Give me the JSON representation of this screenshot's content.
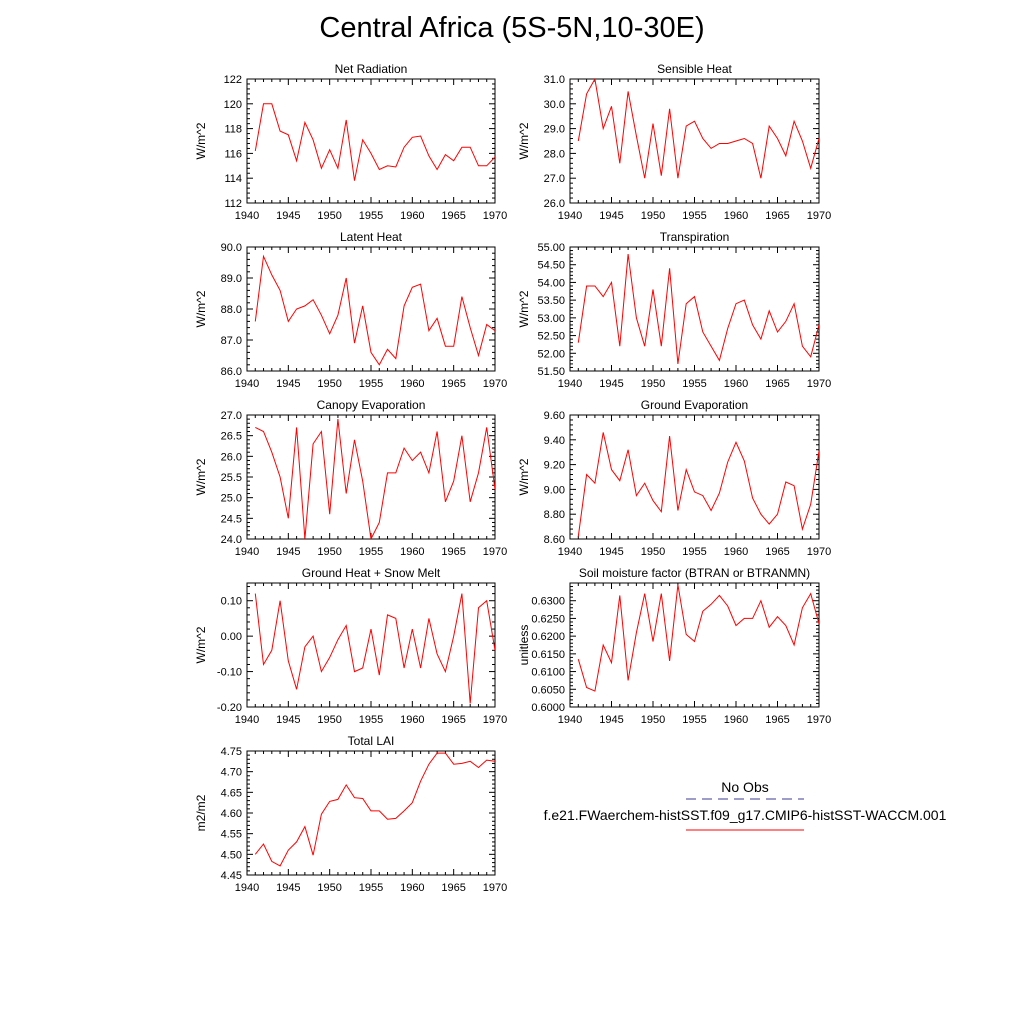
{
  "page": {
    "title": "Central Africa (5S-5N,10-30E)"
  },
  "legend": {
    "obs_label": "No Obs",
    "obs_color": "#3b3b8f",
    "model_label": "f.e21.FWaerchem-histSST.f09_g17.CMIP6-histSST-WACCM.001",
    "model_color": "#ff0000"
  },
  "chart_data": [
    {
      "type": "line",
      "title": "Net Radiation",
      "ylabel": "W/m^2",
      "xlim": [
        1940,
        1970
      ],
      "ylim": [
        112,
        122
      ],
      "yticks": [
        112,
        114,
        116,
        118,
        120,
        122
      ],
      "ytick_labels": [
        "112",
        "114",
        "116",
        "118",
        "120",
        "122"
      ],
      "xticks": [
        1940,
        1945,
        1950,
        1955,
        1960,
        1965,
        1970
      ],
      "x": [
        1941,
        1942,
        1943,
        1944,
        1945,
        1946,
        1947,
        1948,
        1949,
        1950,
        1951,
        1952,
        1953,
        1954,
        1955,
        1956,
        1957,
        1958,
        1959,
        1960,
        1961,
        1962,
        1963,
        1964,
        1965,
        1966,
        1967,
        1968,
        1969,
        1970
      ],
      "series": [
        {
          "values": [
            116.2,
            120.0,
            120.0,
            117.8,
            117.5,
            115.4,
            118.5,
            117.1,
            114.8,
            116.3,
            114.8,
            118.7,
            113.8,
            117.1,
            116.0,
            114.7,
            115.0,
            114.9,
            116.5,
            117.3,
            117.4,
            115.8,
            114.7,
            115.9,
            115.4,
            116.5,
            116.5,
            115.0,
            115.0,
            115.7
          ]
        }
      ]
    },
    {
      "type": "line",
      "title": "Sensible Heat",
      "ylabel": "W/m^2",
      "xlim": [
        1940,
        1970
      ],
      "ylim": [
        26.0,
        31.0
      ],
      "yticks": [
        26,
        27,
        28,
        29,
        30,
        31
      ],
      "ytick_labels": [
        "26.0",
        "27.0",
        "28.0",
        "29.0",
        "30.0",
        "31.0"
      ],
      "xticks": [
        1940,
        1945,
        1950,
        1955,
        1960,
        1965,
        1970
      ],
      "x": [
        1941,
        1942,
        1943,
        1944,
        1945,
        1946,
        1947,
        1948,
        1949,
        1950,
        1951,
        1952,
        1953,
        1954,
        1955,
        1956,
        1957,
        1958,
        1959,
        1960,
        1961,
        1962,
        1963,
        1964,
        1965,
        1966,
        1967,
        1968,
        1969,
        1970
      ],
      "series": [
        {
          "values": [
            28.5,
            30.4,
            31.0,
            29.0,
            29.9,
            27.6,
            30.5,
            28.7,
            27.0,
            29.2,
            27.1,
            29.8,
            27.0,
            29.1,
            29.3,
            28.6,
            28.2,
            28.4,
            28.4,
            28.5,
            28.6,
            28.4,
            27.0,
            29.1,
            28.6,
            27.9,
            29.3,
            28.5,
            27.4,
            28.6
          ]
        }
      ]
    },
    {
      "type": "line",
      "title": "Latent Heat",
      "ylabel": "W/m^2",
      "xlim": [
        1940,
        1970
      ],
      "ylim": [
        86.0,
        90.0
      ],
      "yticks": [
        86,
        87,
        88,
        89,
        90
      ],
      "ytick_labels": [
        "86.0",
        "87.0",
        "88.0",
        "89.0",
        "90.0"
      ],
      "xticks": [
        1940,
        1945,
        1950,
        1955,
        1960,
        1965,
        1970
      ],
      "x": [
        1941,
        1942,
        1943,
        1944,
        1945,
        1946,
        1947,
        1948,
        1949,
        1950,
        1951,
        1952,
        1953,
        1954,
        1955,
        1956,
        1957,
        1958,
        1959,
        1960,
        1961,
        1962,
        1963,
        1964,
        1965,
        1966,
        1967,
        1968,
        1969,
        1970
      ],
      "series": [
        {
          "values": [
            87.6,
            89.7,
            89.1,
            88.6,
            87.6,
            88.0,
            88.1,
            88.3,
            87.8,
            87.2,
            87.8,
            89.0,
            86.9,
            88.1,
            86.6,
            86.2,
            86.7,
            86.4,
            88.1,
            88.7,
            88.8,
            87.3,
            87.7,
            86.8,
            86.8,
            88.4,
            87.4,
            86.5,
            87.5,
            87.3
          ]
        }
      ]
    },
    {
      "type": "line",
      "title": "Transpiration",
      "ylabel": "W/m^2",
      "xlim": [
        1940,
        1970
      ],
      "ylim": [
        51.5,
        55.0
      ],
      "yticks": [
        51.5,
        52.0,
        52.5,
        53.0,
        53.5,
        54.0,
        54.5,
        55.0
      ],
      "ytick_labels": [
        "51.50",
        "52.00",
        "52.50",
        "53.00",
        "53.50",
        "54.00",
        "54.50",
        "55.00"
      ],
      "xticks": [
        1940,
        1945,
        1950,
        1955,
        1960,
        1965,
        1970
      ],
      "x": [
        1941,
        1942,
        1943,
        1944,
        1945,
        1946,
        1947,
        1948,
        1949,
        1950,
        1951,
        1952,
        1953,
        1954,
        1955,
        1956,
        1957,
        1958,
        1959,
        1960,
        1961,
        1962,
        1963,
        1964,
        1965,
        1966,
        1967,
        1968,
        1969,
        1970
      ],
      "series": [
        {
          "values": [
            52.3,
            53.9,
            53.9,
            53.6,
            54.0,
            52.2,
            54.8,
            53.0,
            52.2,
            53.8,
            52.2,
            54.4,
            51.7,
            53.4,
            53.6,
            52.6,
            52.2,
            51.8,
            52.7,
            53.4,
            53.5,
            52.8,
            52.4,
            53.2,
            52.6,
            52.9,
            53.4,
            52.2,
            51.9,
            52.8
          ]
        }
      ]
    },
    {
      "type": "line",
      "title": "Canopy Evaporation",
      "ylabel": "W/m^2",
      "xlim": [
        1940,
        1970
      ],
      "ylim": [
        24.0,
        27.0
      ],
      "yticks": [
        24.0,
        24.5,
        25.0,
        25.5,
        26.0,
        26.5,
        27.0
      ],
      "ytick_labels": [
        "24.0",
        "24.5",
        "25.0",
        "25.5",
        "26.0",
        "26.5",
        "27.0"
      ],
      "xticks": [
        1940,
        1945,
        1950,
        1955,
        1960,
        1965,
        1970
      ],
      "x": [
        1941,
        1942,
        1943,
        1944,
        1945,
        1946,
        1947,
        1948,
        1949,
        1950,
        1951,
        1952,
        1953,
        1954,
        1955,
        1956,
        1957,
        1958,
        1959,
        1960,
        1961,
        1962,
        1963,
        1964,
        1965,
        1966,
        1967,
        1968,
        1969,
        1970
      ],
      "series": [
        {
          "values": [
            26.7,
            26.6,
            26.1,
            25.5,
            24.5,
            26.7,
            24.0,
            26.3,
            26.6,
            24.6,
            26.9,
            25.1,
            26.4,
            25.4,
            24.0,
            24.4,
            25.6,
            25.6,
            26.2,
            25.9,
            26.1,
            25.6,
            26.6,
            24.9,
            25.4,
            26.5,
            24.9,
            25.6,
            26.7,
            25.2
          ]
        }
      ]
    },
    {
      "type": "line",
      "title": "Ground Evaporation",
      "ylabel": "W/m^2",
      "xlim": [
        1940,
        1970
      ],
      "ylim": [
        8.6,
        9.6
      ],
      "yticks": [
        8.6,
        8.8,
        9.0,
        9.2,
        9.4,
        9.6
      ],
      "ytick_labels": [
        "8.60",
        "8.80",
        "9.00",
        "9.20",
        "9.40",
        "9.60"
      ],
      "xticks": [
        1940,
        1945,
        1950,
        1955,
        1960,
        1965,
        1970
      ],
      "x": [
        1941,
        1942,
        1943,
        1944,
        1945,
        1946,
        1947,
        1948,
        1949,
        1950,
        1951,
        1952,
        1953,
        1954,
        1955,
        1956,
        1957,
        1958,
        1959,
        1960,
        1961,
        1962,
        1963,
        1964,
        1965,
        1966,
        1967,
        1968,
        1969,
        1970
      ],
      "series": [
        {
          "values": [
            8.62,
            9.12,
            9.05,
            9.46,
            9.16,
            9.07,
            9.32,
            8.95,
            9.05,
            8.91,
            8.82,
            9.43,
            8.83,
            9.16,
            8.98,
            8.95,
            8.83,
            8.97,
            9.22,
            9.38,
            9.23,
            8.93,
            8.8,
            8.72,
            8.8,
            9.06,
            9.03,
            8.68,
            8.88,
            9.31
          ]
        }
      ]
    },
    {
      "type": "line",
      "title": "Ground Heat + Snow Melt",
      "ylabel": "W/m^2",
      "xlim": [
        1940,
        1970
      ],
      "ylim": [
        -0.2,
        0.15
      ],
      "yticks": [
        -0.2,
        -0.1,
        0.0,
        0.1
      ],
      "ytick_labels": [
        "-0.20",
        "-0.10",
        "0.00",
        "0.10"
      ],
      "xticks": [
        1940,
        1945,
        1950,
        1955,
        1960,
        1965,
        1970
      ],
      "x": [
        1941,
        1942,
        1943,
        1944,
        1945,
        1946,
        1947,
        1948,
        1949,
        1950,
        1951,
        1952,
        1953,
        1954,
        1955,
        1956,
        1957,
        1958,
        1959,
        1960,
        1961,
        1962,
        1963,
        1964,
        1965,
        1966,
        1967,
        1968,
        1969,
        1970
      ],
      "series": [
        {
          "values": [
            0.12,
            -0.08,
            -0.04,
            0.1,
            -0.07,
            -0.15,
            -0.03,
            0.0,
            -0.1,
            -0.06,
            -0.01,
            0.03,
            -0.1,
            -0.09,
            0.02,
            -0.11,
            0.06,
            0.05,
            -0.09,
            0.02,
            -0.09,
            0.05,
            -0.05,
            -0.1,
            0.0,
            0.12,
            -0.19,
            0.08,
            0.1,
            -0.04
          ]
        }
      ]
    },
    {
      "type": "line",
      "title": "Soil moisture factor (BTRAN or BTRANMN)",
      "ylabel": "unitless",
      "xlim": [
        1940,
        1970
      ],
      "ylim": [
        0.6,
        0.635
      ],
      "yticks": [
        0.6,
        0.605,
        0.61,
        0.615,
        0.62,
        0.625,
        0.63
      ],
      "ytick_labels": [
        "0.6000",
        "0.6050",
        "0.6100",
        "0.6150",
        "0.6200",
        "0.6250",
        "0.6300"
      ],
      "xticks": [
        1940,
        1945,
        1950,
        1955,
        1960,
        1965,
        1970
      ],
      "x": [
        1941,
        1942,
        1943,
        1944,
        1945,
        1946,
        1947,
        1948,
        1949,
        1950,
        1951,
        1952,
        1953,
        1954,
        1955,
        1956,
        1957,
        1958,
        1959,
        1960,
        1961,
        1962,
        1963,
        1964,
        1965,
        1966,
        1967,
        1968,
        1969,
        1970
      ],
      "series": [
        {
          "values": [
            0.6135,
            0.6055,
            0.6045,
            0.6175,
            0.6125,
            0.6315,
            0.6075,
            0.621,
            0.632,
            0.6185,
            0.632,
            0.613,
            0.6345,
            0.6205,
            0.6185,
            0.627,
            0.629,
            0.6315,
            0.6285,
            0.623,
            0.625,
            0.625,
            0.63,
            0.6225,
            0.6255,
            0.623,
            0.6175,
            0.628,
            0.632,
            0.6235
          ]
        }
      ]
    },
    {
      "type": "line",
      "title": "Total LAI",
      "ylabel": "m2/m2",
      "xlim": [
        1940,
        1970
      ],
      "ylim": [
        4.45,
        4.75
      ],
      "yticks": [
        4.45,
        4.5,
        4.55,
        4.6,
        4.65,
        4.7,
        4.75
      ],
      "ytick_labels": [
        "4.45",
        "4.50",
        "4.55",
        "4.60",
        "4.65",
        "4.70",
        "4.75"
      ],
      "xticks": [
        1940,
        1945,
        1950,
        1955,
        1960,
        1965,
        1970
      ],
      "x": [
        1941,
        1942,
        1943,
        1944,
        1945,
        1946,
        1947,
        1948,
        1949,
        1950,
        1951,
        1952,
        1953,
        1954,
        1955,
        1956,
        1957,
        1958,
        1959,
        1960,
        1961,
        1962,
        1963,
        1964,
        1965,
        1966,
        1967,
        1968,
        1969,
        1970
      ],
      "series": [
        {
          "values": [
            4.5,
            4.525,
            4.483,
            4.472,
            4.51,
            4.53,
            4.567,
            4.498,
            4.597,
            4.628,
            4.633,
            4.668,
            4.637,
            4.635,
            4.605,
            4.605,
            4.585,
            4.587,
            4.605,
            4.625,
            4.677,
            4.718,
            4.745,
            4.745,
            4.718,
            4.72,
            4.725,
            4.71,
            4.728,
            4.725
          ]
        }
      ]
    }
  ]
}
